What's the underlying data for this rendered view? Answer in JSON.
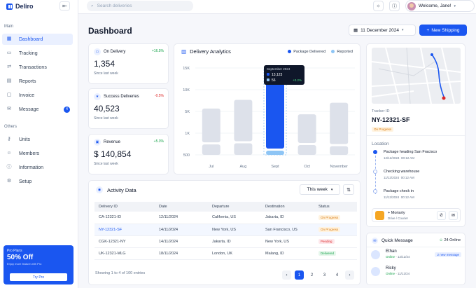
{
  "app": {
    "name": "Deliro"
  },
  "sidebar": {
    "main_label": "Main",
    "main_items": [
      {
        "label": "Dashboard",
        "icon": "grid-icon"
      },
      {
        "label": "Tracking",
        "icon": "truck-icon"
      },
      {
        "label": "Transactions",
        "icon": "transfer-icon"
      },
      {
        "label": "Reports",
        "icon": "report-icon"
      },
      {
        "label": "Invoice",
        "icon": "invoice-icon"
      },
      {
        "label": "Message",
        "icon": "message-icon",
        "badge": "4"
      }
    ],
    "others_label": "Others",
    "other_items": [
      {
        "label": "Units",
        "icon": "key-icon"
      },
      {
        "label": "Members",
        "icon": "users-icon"
      },
      {
        "label": "Information",
        "icon": "info-icon"
      },
      {
        "label": "Setup",
        "icon": "gear-icon"
      }
    ],
    "promo": {
      "title": "Pro Plans",
      "offer": "50% Off",
      "desc": "Enjoy more feature with Pro",
      "button": "Try Pro"
    }
  },
  "topbar": {
    "search_placeholder": "Search deliveries",
    "welcome": "Welcome, Jane!"
  },
  "header": {
    "title": "Dashboard",
    "date": "11 December 2024",
    "new_button": "New Shipping"
  },
  "stats": [
    {
      "label": "On Delivery",
      "change": "+16.5%",
      "direction": "up",
      "value": "1,354",
      "sub": "Since last week"
    },
    {
      "label": "Success Deliveries",
      "change": "-0.5%",
      "direction": "down",
      "value": "40,523",
      "sub": "Since last week"
    },
    {
      "label": "Revenue",
      "change": "+5.3%",
      "direction": "up",
      "value": "$ 140,854",
      "sub": "Since last week"
    }
  ],
  "analytics": {
    "title": "Delivery Analytics",
    "legend_delivered": "Package Delivered",
    "legend_reported": "Reported",
    "tooltip": {
      "month": "September 2024",
      "delivered": "13,123",
      "reported": "56",
      "change": "+0.2%"
    },
    "colors": {
      "delivered": "#1a56f0",
      "reported": "#8ec5f5",
      "inactive": "#dde1ea"
    }
  },
  "chart_data": {
    "type": "bar",
    "title": "Delivery Analytics",
    "categories": [
      "Jul",
      "Aug",
      "Sept",
      "Oct",
      "November"
    ],
    "yticks": [
      "15K",
      "10K",
      "5K",
      "1K",
      "500"
    ],
    "series": [
      {
        "name": "Package Delivered",
        "values": [
          8000,
          9500,
          13123,
          7000,
          9000
        ]
      },
      {
        "name": "Reported",
        "values": [
          1800,
          2000,
          56,
          1700,
          1500
        ]
      }
    ],
    "highlight": "Sept"
  },
  "activity": {
    "title": "Activity Data",
    "filter": "This week",
    "columns": [
      "Delivery ID",
      "Date",
      "Departure",
      "Destination",
      "Status"
    ],
    "rows": [
      {
        "id": "CA-12321-ID",
        "date": "12/11/2024",
        "departure": "California, US",
        "destination": "Jakarta, ID",
        "status": "On Progress",
        "kind": "progress"
      },
      {
        "id": "NY-12321-SF",
        "date": "14/11/2024",
        "departure": "New York, US",
        "destination": "San Francisco, US",
        "status": "On Progress",
        "kind": "progress"
      },
      {
        "id": "CGK-12321-NY",
        "date": "14/11/2024",
        "departure": "Jakarta, ID",
        "destination": "New York, US",
        "status": "Pending",
        "kind": "pending"
      },
      {
        "id": "UK-12321-MLG",
        "date": "18/11/2024",
        "departure": "London, UK",
        "destination": "Malang, ID",
        "status": "Delivered",
        "kind": "delivered"
      }
    ],
    "footer": "Showing 1 to 4 of 100 entries",
    "pages": [
      "1",
      "2",
      "3",
      "4"
    ]
  },
  "tracker": {
    "label": "Tracker ID",
    "id": "NY-12321-SF",
    "status": "On Progress",
    "location_label": "Location",
    "stops": [
      {
        "title": "Package heading San Fracisco",
        "date": "12/12/2024",
        "time": "00:12 AM"
      },
      {
        "title": "Checking warehouse",
        "date": "11/12/2024",
        "time": "00:12 AM"
      },
      {
        "title": "Package check in",
        "date": "11/12/2024",
        "time": "00:12 AM"
      }
    ],
    "courier_name": "+ Moriarty",
    "courier_role": "Drive / Courier"
  },
  "quick_message": {
    "title": "Quick Message",
    "online": "24 Online",
    "items": [
      {
        "name": "Ethan",
        "status": "Online",
        "date": "12/12/24",
        "tag": "2 new message"
      },
      {
        "name": "Ricky",
        "status": "Online",
        "date": "11/12/24",
        "tag": ""
      }
    ]
  }
}
